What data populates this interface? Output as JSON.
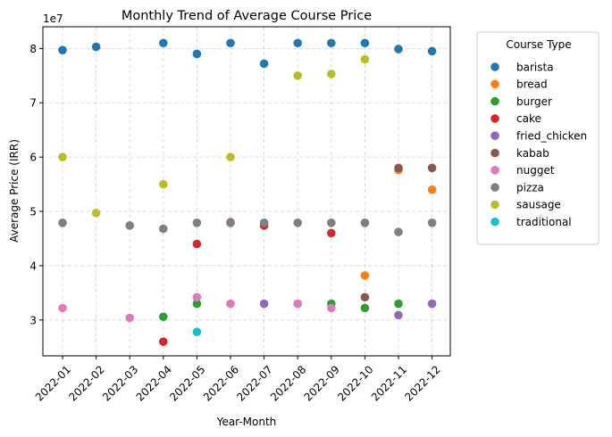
{
  "chart_data": {
    "type": "scatter",
    "title": "Monthly Trend of Average Course Price",
    "xlabel": "Year-Month",
    "ylabel": "Average Price (IRR)",
    "y_offset_label": "1e7",
    "categories": [
      "2022-01",
      "2022-02",
      "2022-03",
      "2022-04",
      "2022-05",
      "2022-06",
      "2022-07",
      "2022-08",
      "2022-09",
      "2022-10",
      "2022-11",
      "2022-12"
    ],
    "ylim": [
      23400000,
      84000000
    ],
    "yticks": [
      {
        "value": 30000000,
        "label": "3"
      },
      {
        "value": 40000000,
        "label": "4"
      },
      {
        "value": 50000000,
        "label": "5"
      },
      {
        "value": 60000000,
        "label": "6"
      },
      {
        "value": 70000000,
        "label": "7"
      },
      {
        "value": 80000000,
        "label": "8"
      }
    ],
    "grid": true,
    "legend_title": "Course Type",
    "legend_position": "outside-right",
    "series": [
      {
        "name": "barista",
        "color": "#1f77b4",
        "points": [
          {
            "x": "2022-01",
            "y": 79700000
          },
          {
            "x": "2022-02",
            "y": 80300000
          },
          {
            "x": "2022-04",
            "y": 81000000
          },
          {
            "x": "2022-05",
            "y": 79000000
          },
          {
            "x": "2022-06",
            "y": 81000000
          },
          {
            "x": "2022-07",
            "y": 77200000
          },
          {
            "x": "2022-08",
            "y": 81000000
          },
          {
            "x": "2022-09",
            "y": 81000000
          },
          {
            "x": "2022-10",
            "y": 81000000
          },
          {
            "x": "2022-11",
            "y": 79900000
          },
          {
            "x": "2022-12",
            "y": 79500000
          }
        ]
      },
      {
        "name": "bread",
        "color": "#ff7f0e",
        "points": [
          {
            "x": "2022-10",
            "y": 38200000
          },
          {
            "x": "2022-11",
            "y": 57600000
          },
          {
            "x": "2022-12",
            "y": 54000000
          }
        ]
      },
      {
        "name": "burger",
        "color": "#2ca02c",
        "points": [
          {
            "x": "2022-04",
            "y": 30600000
          },
          {
            "x": "2022-05",
            "y": 33000000
          },
          {
            "x": "2022-09",
            "y": 33000000
          },
          {
            "x": "2022-10",
            "y": 32200000
          },
          {
            "x": "2022-11",
            "y": 33000000
          }
        ]
      },
      {
        "name": "cake",
        "color": "#d62728",
        "points": [
          {
            "x": "2022-04",
            "y": 26000000
          },
          {
            "x": "2022-05",
            "y": 44000000
          },
          {
            "x": "2022-06",
            "y": 48000000
          },
          {
            "x": "2022-07",
            "y": 47400000
          },
          {
            "x": "2022-09",
            "y": 46000000
          }
        ]
      },
      {
        "name": "fried_chicken",
        "color": "#9467bd",
        "points": [
          {
            "x": "2022-07",
            "y": 33000000
          },
          {
            "x": "2022-08",
            "y": 33000000
          },
          {
            "x": "2022-11",
            "y": 30900000
          },
          {
            "x": "2022-12",
            "y": 33000000
          }
        ]
      },
      {
        "name": "kabab",
        "color": "#8c564b",
        "points": [
          {
            "x": "2022-10",
            "y": 34200000
          },
          {
            "x": "2022-11",
            "y": 58000000
          },
          {
            "x": "2022-12",
            "y": 58000000
          }
        ]
      },
      {
        "name": "nugget",
        "color": "#e377c2",
        "points": [
          {
            "x": "2022-01",
            "y": 32200000
          },
          {
            "x": "2022-03",
            "y": 30400000
          },
          {
            "x": "2022-05",
            "y": 34200000
          },
          {
            "x": "2022-06",
            "y": 33000000
          },
          {
            "x": "2022-08",
            "y": 33000000
          },
          {
            "x": "2022-09",
            "y": 32200000
          }
        ]
      },
      {
        "name": "pizza",
        "color": "#7f7f7f",
        "points": [
          {
            "x": "2022-01",
            "y": 47900000
          },
          {
            "x": "2022-03",
            "y": 47400000
          },
          {
            "x": "2022-04",
            "y": 46800000
          },
          {
            "x": "2022-05",
            "y": 47900000
          },
          {
            "x": "2022-06",
            "y": 47900000
          },
          {
            "x": "2022-07",
            "y": 47900000
          },
          {
            "x": "2022-08",
            "y": 47900000
          },
          {
            "x": "2022-09",
            "y": 47900000
          },
          {
            "x": "2022-10",
            "y": 47900000
          },
          {
            "x": "2022-11",
            "y": 46200000
          },
          {
            "x": "2022-12",
            "y": 47900000
          }
        ]
      },
      {
        "name": "sausage",
        "color": "#bcbd22",
        "points": [
          {
            "x": "2022-01",
            "y": 60000000
          },
          {
            "x": "2022-02",
            "y": 49700000
          },
          {
            "x": "2022-04",
            "y": 55000000
          },
          {
            "x": "2022-06",
            "y": 60000000
          },
          {
            "x": "2022-08",
            "y": 75000000
          },
          {
            "x": "2022-09",
            "y": 75300000
          },
          {
            "x": "2022-10",
            "y": 78000000
          }
        ]
      },
      {
        "name": "traditional",
        "color": "#17becf",
        "points": [
          {
            "x": "2022-05",
            "y": 27800000
          }
        ]
      }
    ]
  }
}
